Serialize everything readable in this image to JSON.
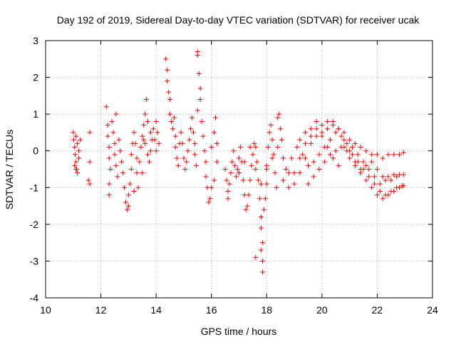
{
  "chart_data": {
    "type": "scatter",
    "title": "Day 192 of 2019, Sidereal Day-to-day VTEC variation (SDTVAR) for receiver ucak",
    "xlabel": "GPS time / hours",
    "ylabel": "SDTVAR / TECUs",
    "xlim": [
      10,
      24
    ],
    "ylim": [
      -4,
      3
    ],
    "xticks": [
      10,
      12,
      14,
      16,
      18,
      20,
      22,
      24
    ],
    "yticks": [
      -4,
      -3,
      -2,
      -1,
      0,
      1,
      2,
      3
    ],
    "xtick_labels": [
      "10",
      "12",
      "14",
      "16",
      "18",
      "20",
      "22",
      "24"
    ],
    "ytick_labels": [
      "-4",
      "-3",
      "-2",
      "-1",
      "0",
      "1",
      "2",
      "3"
    ],
    "grid": true,
    "marker": "+",
    "color": "#ff0000",
    "series": [
      {
        "name": "ucak",
        "points": [
          [
            11.0,
            0.5
          ],
          [
            11.02,
            0.3
          ],
          [
            11.05,
            0.1
          ],
          [
            11.07,
            -0.1
          ],
          [
            11.1,
            -0.3
          ],
          [
            11.12,
            -0.5
          ],
          [
            11.15,
            -0.6
          ],
          [
            11.05,
            -0.4
          ],
          [
            11.1,
            0.4
          ],
          [
            11.15,
            0.2
          ],
          [
            11.2,
            0.0
          ],
          [
            11.2,
            -0.2
          ],
          [
            11.25,
            0.3
          ],
          [
            11.1,
            -0.5
          ],
          [
            11.6,
            0.5
          ],
          [
            11.6,
            -0.3
          ],
          [
            11.55,
            -0.8
          ],
          [
            11.6,
            -0.9
          ],
          [
            12.2,
            1.2
          ],
          [
            12.25,
            0.7
          ],
          [
            12.25,
            0.4
          ],
          [
            12.3,
            0.1
          ],
          [
            12.3,
            -0.2
          ],
          [
            12.35,
            -0.5
          ],
          [
            12.3,
            -0.9
          ],
          [
            12.3,
            -1.2
          ],
          [
            12.4,
            0.8
          ],
          [
            12.45,
            0.5
          ],
          [
            12.5,
            0.2
          ],
          [
            12.5,
            -0.1
          ],
          [
            12.55,
            -0.4
          ],
          [
            12.6,
            -0.7
          ],
          [
            12.55,
            1.0
          ],
          [
            12.65,
            0.3
          ],
          [
            12.7,
            0.0
          ],
          [
            12.75,
            -0.3
          ],
          [
            12.8,
            -0.6
          ],
          [
            12.85,
            -1.0
          ],
          [
            12.9,
            -1.4
          ],
          [
            12.95,
            -1.6
          ],
          [
            13.0,
            -1.5
          ],
          [
            13.0,
            -1.2
          ],
          [
            13.05,
            -0.9
          ],
          [
            13.1,
            -0.5
          ],
          [
            13.1,
            -0.1
          ],
          [
            13.15,
            0.2
          ],
          [
            13.2,
            0.5
          ],
          [
            13.25,
            0.2
          ],
          [
            13.3,
            -0.2
          ],
          [
            13.3,
            -0.6
          ],
          [
            13.35,
            -1.0
          ],
          [
            13.2,
            -1.1
          ],
          [
            13.4,
            -0.3
          ],
          [
            13.45,
            0.1
          ],
          [
            13.5,
            0.4
          ],
          [
            13.55,
            0.7
          ],
          [
            13.6,
            1.0
          ],
          [
            13.65,
            1.4
          ],
          [
            13.6,
            0.2
          ],
          [
            13.7,
            -0.1
          ],
          [
            13.75,
            -0.3
          ],
          [
            13.8,
            0.0
          ],
          [
            13.85,
            0.3
          ],
          [
            13.9,
            0.6
          ],
          [
            13.95,
            0.3
          ],
          [
            14.0,
            0.0
          ],
          [
            13.7,
            0.8
          ],
          [
            13.8,
            0.5
          ],
          [
            14.0,
            0.8
          ],
          [
            14.05,
            0.5
          ],
          [
            14.1,
            0.2
          ],
          [
            13.5,
            -0.6
          ],
          [
            13.55,
            0.3
          ],
          [
            14.35,
            2.5
          ],
          [
            14.4,
            2.2
          ],
          [
            14.4,
            1.9
          ],
          [
            14.45,
            1.6
          ],
          [
            14.5,
            1.4
          ],
          [
            14.5,
            1.0
          ],
          [
            14.55,
            0.8
          ],
          [
            14.6,
            0.6
          ],
          [
            14.65,
            0.9
          ],
          [
            14.7,
            0.4
          ],
          [
            14.7,
            0.1
          ],
          [
            14.75,
            -0.2
          ],
          [
            14.8,
            -0.4
          ],
          [
            14.85,
            0.2
          ],
          [
            14.9,
            0.5
          ],
          [
            14.95,
            0.2
          ],
          [
            15.0,
            -0.2
          ],
          [
            15.05,
            -0.5
          ],
          [
            15.1,
            -0.3
          ],
          [
            15.15,
            0.0
          ],
          [
            15.2,
            0.3
          ],
          [
            15.25,
            0.6
          ],
          [
            15.3,
            0.9
          ],
          [
            15.35,
            0.5
          ],
          [
            15.4,
            0.2
          ],
          [
            15.4,
            -0.1
          ],
          [
            15.45,
            -0.4
          ],
          [
            15.5,
            1.1
          ],
          [
            15.5,
            2.6
          ],
          [
            15.5,
            2.7
          ],
          [
            15.55,
            2.1
          ],
          [
            15.6,
            1.7
          ],
          [
            15.6,
            1.4
          ],
          [
            15.65,
            0.8
          ],
          [
            15.7,
            0.4
          ],
          [
            15.75,
            0.0
          ],
          [
            15.8,
            -0.3
          ],
          [
            15.8,
            -0.7
          ],
          [
            15.85,
            -1.0
          ],
          [
            15.9,
            -1.4
          ],
          [
            15.95,
            -1.3
          ],
          [
            16.0,
            -1.0
          ],
          [
            16.0,
            0.1
          ],
          [
            16.1,
            0.5
          ],
          [
            16.15,
            0.9
          ],
          [
            16.2,
            0.2
          ],
          [
            16.2,
            -0.3
          ],
          [
            16.1,
            -0.8
          ],
          [
            16.5,
            -0.5
          ],
          [
            16.55,
            -0.8
          ],
          [
            16.6,
            -1.1
          ],
          [
            16.6,
            -1.3
          ],
          [
            16.65,
            -0.9
          ],
          [
            16.7,
            -0.6
          ],
          [
            16.75,
            -0.3
          ],
          [
            16.8,
            0.0
          ],
          [
            16.85,
            -0.4
          ],
          [
            16.9,
            -0.7
          ],
          [
            16.95,
            -0.5
          ],
          [
            17.0,
            -0.2
          ],
          [
            17.05,
            0.1
          ],
          [
            17.1,
            -0.3
          ],
          [
            17.15,
            -0.8
          ],
          [
            17.2,
            -1.2
          ],
          [
            17.25,
            -1.6
          ],
          [
            17.3,
            -1.5
          ],
          [
            17.35,
            -1.2
          ],
          [
            17.4,
            -0.8
          ],
          [
            17.45,
            -0.4
          ],
          [
            17.5,
            -0.1
          ],
          [
            17.55,
            0.2
          ],
          [
            17.6,
            0.1
          ],
          [
            17.65,
            -0.3
          ],
          [
            17.7,
            -0.8
          ],
          [
            17.75,
            -1.3
          ],
          [
            17.8,
            -1.8
          ],
          [
            17.8,
            -2.1
          ],
          [
            17.85,
            -2.5
          ],
          [
            17.8,
            -2.7
          ],
          [
            17.85,
            -3.0
          ],
          [
            17.85,
            -3.3
          ],
          [
            17.9,
            -1.6
          ],
          [
            17.95,
            -1.3
          ],
          [
            18.0,
            -0.9
          ],
          [
            18.0,
            -0.4
          ],
          [
            18.05,
            0.1
          ],
          [
            18.1,
            0.5
          ],
          [
            18.15,
            0.7
          ],
          [
            18.2,
            0.3
          ],
          [
            18.25,
            -0.1
          ],
          [
            18.3,
            -0.6
          ],
          [
            18.35,
            -1.0
          ],
          [
            18.4,
            0.9
          ],
          [
            18.45,
            1.0
          ],
          [
            18.5,
            0.6
          ],
          [
            18.55,
            0.3
          ],
          [
            17.6,
            -2.9
          ],
          [
            17.0,
            -0.6
          ],
          [
            17.2,
            -0.3
          ],
          [
            17.4,
            0.1
          ],
          [
            17.6,
            -0.5
          ],
          [
            17.8,
            -0.9
          ],
          [
            18.0,
            -0.5
          ],
          [
            18.2,
            -0.2
          ],
          [
            18.4,
            0.1
          ],
          [
            18.6,
            -0.2
          ],
          [
            18.8,
            -0.6
          ],
          [
            19.0,
            -0.9
          ],
          [
            19.2,
            -0.6
          ],
          [
            19.4,
            -0.2
          ],
          [
            19.6,
            0.2
          ],
          [
            19.8,
            0.4
          ],
          [
            20.0,
            0.5
          ],
          [
            20.2,
            0.6
          ],
          [
            20.4,
            0.7
          ],
          [
            20.6,
            0.6
          ],
          [
            20.8,
            0.5
          ],
          [
            21.0,
            0.3
          ],
          [
            21.2,
            0.2
          ],
          [
            21.4,
            0.1
          ],
          [
            21.6,
            0.0
          ],
          [
            21.8,
            -0.1
          ],
          [
            22.0,
            -0.1
          ],
          [
            22.2,
            -0.2
          ],
          [
            22.4,
            -0.1
          ],
          [
            22.6,
            -0.1
          ],
          [
            22.8,
            -0.1
          ],
          [
            22.95,
            -0.05
          ],
          [
            18.6,
            -0.8
          ],
          [
            18.8,
            -1.0
          ],
          [
            19.0,
            -0.6
          ],
          [
            19.2,
            -0.2
          ],
          [
            19.4,
            0.2
          ],
          [
            19.6,
            0.4
          ],
          [
            19.8,
            0.6
          ],
          [
            20.0,
            0.7
          ],
          [
            20.2,
            0.8
          ],
          [
            20.4,
            0.8
          ],
          [
            20.6,
            0.6
          ],
          [
            20.8,
            0.3
          ],
          [
            21.0,
            0.0
          ],
          [
            21.2,
            -0.3
          ],
          [
            21.4,
            -0.6
          ],
          [
            21.6,
            -0.8
          ],
          [
            21.8,
            -1.0
          ],
          [
            22.0,
            -1.2
          ],
          [
            22.2,
            -1.3
          ],
          [
            22.4,
            -1.2
          ],
          [
            22.6,
            -1.1
          ],
          [
            22.8,
            -1.0
          ],
          [
            22.95,
            -0.95
          ],
          [
            18.7,
            -0.5
          ],
          [
            18.9,
            -0.2
          ],
          [
            19.1,
            0.1
          ],
          [
            19.3,
            -0.1
          ],
          [
            19.5,
            -0.4
          ],
          [
            19.7,
            -0.3
          ],
          [
            19.9,
            -0.1
          ],
          [
            20.1,
            0.1
          ],
          [
            20.3,
            0.3
          ],
          [
            20.5,
            0.5
          ],
          [
            20.7,
            0.4
          ],
          [
            20.9,
            0.2
          ],
          [
            21.1,
            0.1
          ],
          [
            21.3,
            -0.1
          ],
          [
            21.5,
            -0.3
          ],
          [
            21.7,
            -0.5
          ],
          [
            21.9,
            -0.7
          ],
          [
            22.1,
            -0.9
          ],
          [
            22.3,
            -0.8
          ],
          [
            22.5,
            -0.8
          ],
          [
            22.7,
            -0.7
          ],
          [
            22.95,
            -0.65
          ],
          [
            19.5,
            -0.9
          ],
          [
            19.7,
            -0.7
          ],
          [
            19.9,
            -0.5
          ],
          [
            20.1,
            -0.3
          ],
          [
            20.3,
            -0.1
          ],
          [
            20.5,
            0.0
          ],
          [
            20.7,
            0.1
          ],
          [
            20.9,
            0.0
          ],
          [
            21.1,
            -0.1
          ],
          [
            21.3,
            -0.3
          ],
          [
            21.5,
            -0.5
          ],
          [
            21.7,
            -0.7
          ],
          [
            21.9,
            -0.9
          ],
          [
            22.1,
            -1.1
          ],
          [
            22.3,
            -1.2
          ],
          [
            22.5,
            -1.1
          ],
          [
            22.7,
            -1.0
          ],
          [
            22.9,
            -0.95
          ],
          [
            19.2,
            0.3
          ],
          [
            19.4,
            0.5
          ],
          [
            19.6,
            0.6
          ],
          [
            19.8,
            0.8
          ],
          [
            20.0,
            0.4
          ],
          [
            20.2,
            0.1
          ],
          [
            20.4,
            -0.2
          ],
          [
            20.6,
            -0.4
          ],
          [
            20.8,
            0.1
          ],
          [
            21.0,
            -0.2
          ],
          [
            21.2,
            -0.4
          ],
          [
            21.4,
            -0.5
          ],
          [
            21.6,
            -0.4
          ],
          [
            21.8,
            -0.3
          ],
          [
            22.0,
            -0.5
          ],
          [
            22.2,
            -0.7
          ],
          [
            22.4,
            -0.7
          ],
          [
            22.6,
            -0.65
          ],
          [
            22.8,
            -0.65
          ]
        ]
      }
    ]
  }
}
